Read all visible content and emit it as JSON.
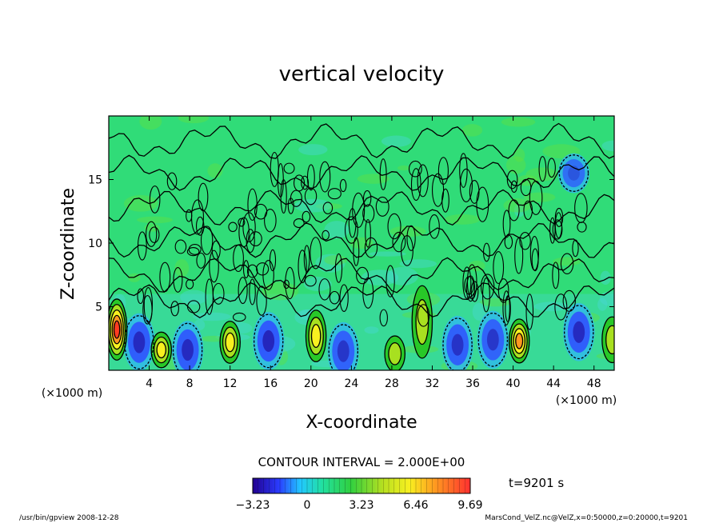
{
  "chart_data": {
    "type": "heatmap",
    "title": "vertical velocity",
    "xlabel": "X-coordinate",
    "ylabel": "Z-coordinate",
    "x_unit": "(×1000 m)",
    "y_unit": "(×1000 m)",
    "xlim": [
      0,
      50
    ],
    "ylim": [
      0,
      20
    ],
    "x_ticks": [
      4,
      8,
      12,
      16,
      20,
      24,
      28,
      32,
      36,
      40,
      44,
      48
    ],
    "y_ticks": [
      5,
      10,
      15
    ],
    "contour_interval_text": "CONTOUR INTERVAL = 2.000E+00",
    "time_text": "t=9201 s",
    "colorbar": {
      "min": -3.23,
      "max": 9.69,
      "ticks": [
        -3.23,
        0,
        3.23,
        6.46,
        9.69
      ],
      "tick_labels": [
        "−3.23",
        "0",
        "3.23",
        "6.46",
        "9.69"
      ]
    },
    "updrafts": [
      {
        "x": 0.8,
        "z": 3.2,
        "w": 9.5
      },
      {
        "x": 5.2,
        "z": 1.6,
        "w": 6.0
      },
      {
        "x": 12.0,
        "z": 2.2,
        "w": 6.5
      },
      {
        "x": 20.5,
        "z": 2.7,
        "w": 6.0
      },
      {
        "x": 28.3,
        "z": 1.3,
        "w": 4.5
      },
      {
        "x": 31.0,
        "z": 3.8,
        "w": 3.5
      },
      {
        "x": 40.6,
        "z": 2.3,
        "w": 8.5
      },
      {
        "x": 49.8,
        "z": 2.4,
        "w": 4.0
      }
    ],
    "downdrafts": [
      {
        "x": 3.0,
        "z": 2.2,
        "w": -3.0
      },
      {
        "x": 7.8,
        "z": 1.6,
        "w": -3.0
      },
      {
        "x": 15.8,
        "z": 2.3,
        "w": -3.2
      },
      {
        "x": 23.2,
        "z": 1.5,
        "w": -2.5
      },
      {
        "x": 34.5,
        "z": 2.0,
        "w": -2.6
      },
      {
        "x": 38.0,
        "z": 2.4,
        "w": -2.4
      },
      {
        "x": 46.5,
        "z": 3.0,
        "w": -3.0
      },
      {
        "x": 46.0,
        "z": 15.5,
        "w": -1.2
      }
    ]
  },
  "footer": {
    "left": "/usr/bin/gpview   2008-12-28",
    "right": "MarsCond_VelZ.nc@VelZ,x=0:50000,z=0:20000,t=9201"
  }
}
